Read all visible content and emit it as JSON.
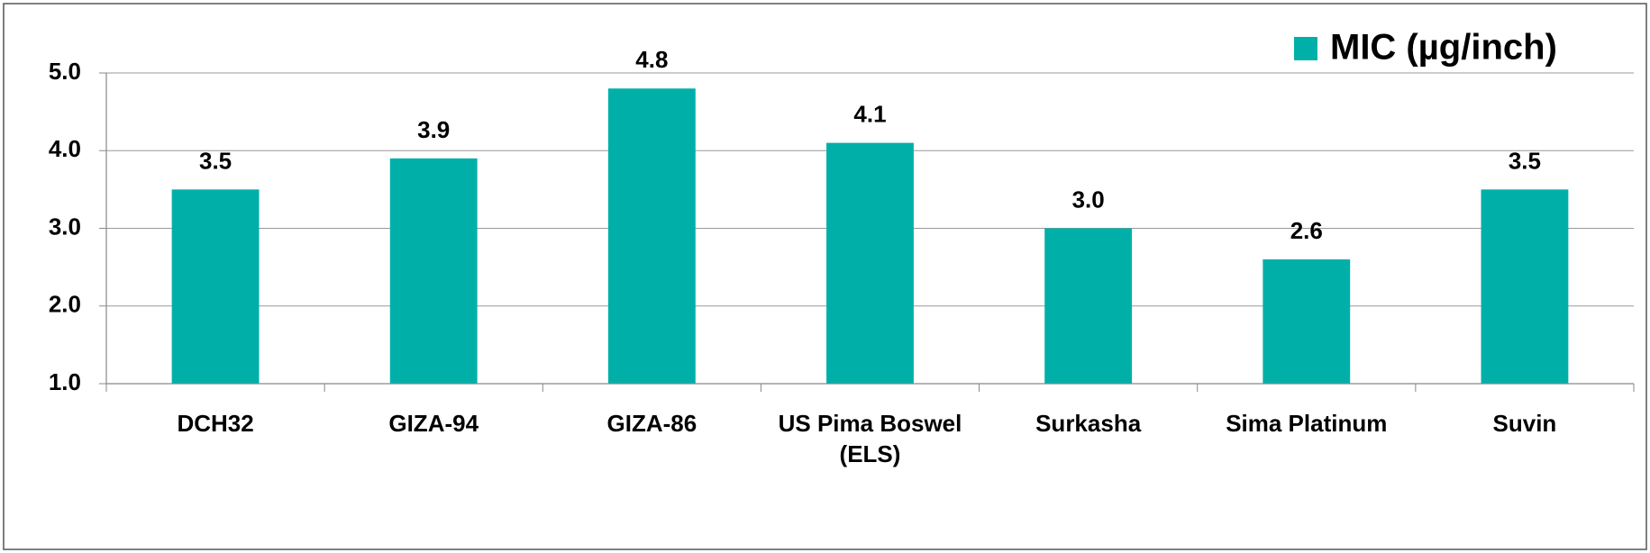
{
  "chart_data": {
    "type": "bar",
    "categories": [
      "DCH32",
      "GIZA-94",
      "GIZA-86",
      "US Pima Boswel (ELS)",
      "Surkasha",
      "Sima Platinum",
      "Suvin"
    ],
    "series": [
      {
        "name": "MIC (µg/inch)",
        "color": "#00b0a8",
        "values": [
          3.5,
          3.9,
          4.8,
          4.1,
          3.0,
          2.6,
          3.5
        ],
        "value_labels": [
          "3.5",
          "3.9",
          "4.8",
          "4.1",
          "3.0",
          "2.6",
          "3.5"
        ]
      }
    ],
    "ylim": [
      1.0,
      5.0
    ],
    "yticks": [
      {
        "value": 1,
        "label": "1.0"
      },
      {
        "value": 2,
        "label": "2.0"
      },
      {
        "value": 3,
        "label": "3.0"
      },
      {
        "value": 4,
        "label": "4.0"
      },
      {
        "value": 5,
        "label": "5.0"
      }
    ],
    "grid": true,
    "legend": "top-right"
  }
}
